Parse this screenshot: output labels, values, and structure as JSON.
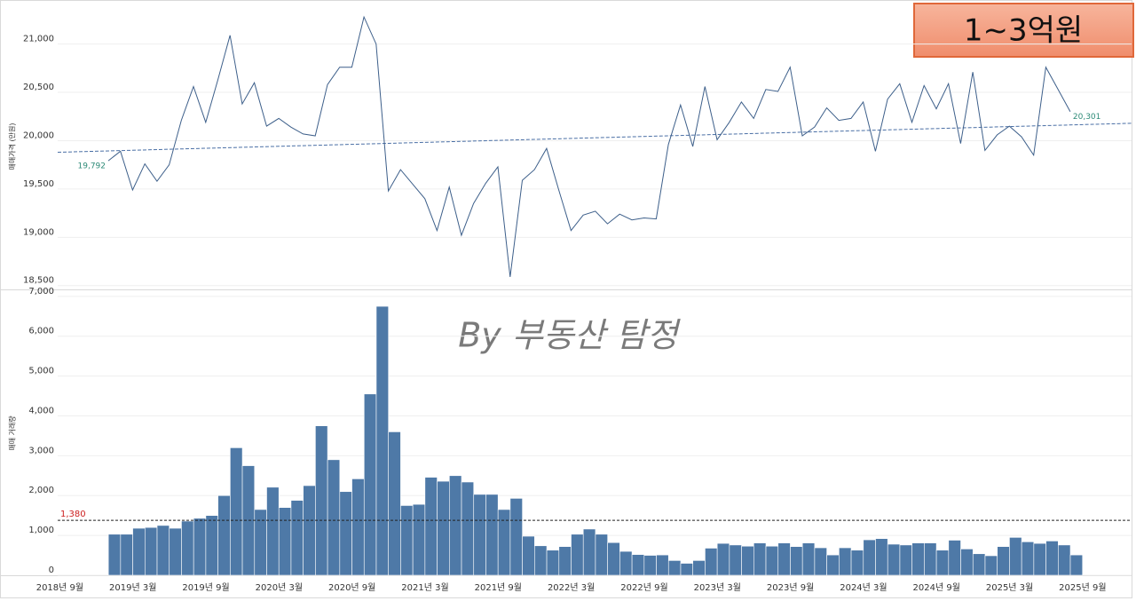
{
  "badge": "1~3억원",
  "watermark": "By 부동산 탐정",
  "chart_data": {
    "type": "combo",
    "categories": [
      "2018년 9월",
      null,
      null,
      null,
      null,
      null,
      "2019년 3월",
      null,
      null,
      null,
      null,
      null,
      "2019년 9월",
      null,
      null,
      null,
      null,
      null,
      "2020년 3월",
      null,
      null,
      null,
      null,
      null,
      "2020년 9월",
      null,
      null,
      null,
      null,
      null,
      "2021년 3월",
      null,
      null,
      null,
      null,
      null,
      "2021년 9월",
      null,
      null,
      null,
      null,
      null,
      "2022년 3월",
      null,
      null,
      null,
      null,
      null,
      "2022년 9월",
      null,
      null,
      null,
      null,
      null,
      "2023년 3월",
      null,
      null,
      null,
      null,
      null,
      "2023년 9월",
      null,
      null,
      null,
      null,
      null,
      "2024년 3월",
      null,
      null,
      null,
      null,
      null,
      "2024년 9월",
      null,
      null,
      null,
      null,
      null,
      "2025년 3월",
      null,
      null,
      null,
      null,
      null,
      "2025년 9월"
    ],
    "series": [
      {
        "type": "line",
        "color": "#3d5f8a",
        "ylabel": "매매가격 (만원)",
        "ylim": [
          18470,
          21410
        ],
        "yticks": [
          {
            "value": 18500,
            "label": "18,500"
          },
          {
            "value": 19000,
            "label": "19,000"
          },
          {
            "value": 19500,
            "label": "19,500"
          },
          {
            "value": 20000,
            "label": "20,000"
          },
          {
            "value": 20500,
            "label": "20,500"
          },
          {
            "value": 21000,
            "label": "21,000"
          }
        ],
        "grid": true,
        "values": [
          null,
          null,
          null,
          null,
          null,
          19792,
          19890,
          19490,
          19760,
          19580,
          19750,
          20210,
          20560,
          20190,
          20630,
          21090,
          20380,
          20600,
          20150,
          20230,
          20140,
          20070,
          20050,
          20580,
          20760,
          20760,
          21280,
          21000,
          19480,
          19700,
          19550,
          19400,
          19070,
          19520,
          19020,
          19350,
          19560,
          19730,
          18590,
          19590,
          19700,
          19920,
          19490,
          19070,
          19230,
          19270,
          19140,
          19240,
          19180,
          19200,
          19190,
          19960,
          20370,
          19940,
          20560,
          20010,
          20190,
          20400,
          20230,
          20530,
          20510,
          20760,
          20050,
          20140,
          20340,
          20210,
          20230,
          20400,
          19890,
          20430,
          20590,
          20190,
          20570,
          20330,
          20590,
          19970,
          20710,
          19900,
          20060,
          20150,
          20040,
          19850,
          20760,
          20530,
          20301
        ],
        "value_labels": [
          null,
          null,
          null,
          null,
          null,
          "19,792",
          null,
          null,
          null,
          null,
          null,
          null,
          null,
          null,
          null,
          null,
          null,
          null,
          null,
          null,
          null,
          null,
          null,
          null,
          null,
          null,
          null,
          null,
          null,
          null,
          null,
          null,
          null,
          null,
          null,
          null,
          null,
          null,
          null,
          null,
          null,
          null,
          null,
          null,
          null,
          null,
          null,
          null,
          null,
          null,
          null,
          null,
          null,
          null,
          null,
          null,
          null,
          null,
          null,
          null,
          null,
          null,
          null,
          null,
          null,
          null,
          null,
          null,
          null,
          null,
          null,
          null,
          null,
          null,
          null,
          null,
          null,
          null,
          null,
          null,
          null,
          null,
          null,
          null,
          "20,301"
        ],
        "label_color": "#2e8b78",
        "trend_line": [
          19880,
          20180
        ],
        "trend_color": "#4a6fa5"
      },
      {
        "type": "bar",
        "color": "#4e79a7",
        "ylabel": "매매 거래량",
        "ylim": [
          0,
          7130
        ],
        "yticks": [
          0,
          {
            "value": 1000,
            "label": "1,000"
          },
          {
            "value": 2000,
            "label": "2,000"
          },
          {
            "value": 3000,
            "label": "3,000"
          },
          {
            "value": 4000,
            "label": "4,000"
          },
          {
            "value": 5000,
            "label": "5,000"
          },
          {
            "value": 6000,
            "label": "6,000"
          },
          {
            "value": 7000,
            "label": "7,000"
          }
        ],
        "grid": true,
        "values": [
          null,
          null,
          null,
          null,
          null,
          1030,
          1030,
          1180,
          1200,
          1250,
          1180,
          1360,
          1430,
          1500,
          2000,
          3200,
          2750,
          1650,
          2210,
          1700,
          1880,
          2250,
          3750,
          2900,
          2100,
          2420,
          4550,
          6750,
          3600,
          1750,
          1780,
          2460,
          2360,
          2500,
          2340,
          2030,
          2030,
          1650,
          1930,
          980,
          740,
          630,
          720,
          1030,
          1160,
          1030,
          820,
          600,
          520,
          500,
          510,
          370,
          300,
          370,
          680,
          800,
          760,
          730,
          810,
          730,
          810,
          720,
          810,
          690,
          510,
          690,
          630,
          890,
          920,
          780,
          760,
          810,
          810,
          630,
          880,
          660,
          540,
          490,
          720,
          950,
          840,
          800,
          860,
          760,
          510
        ],
        "reference_line": {
          "value": 1380,
          "label": "1,380"
        },
        "reference_color": "#222",
        "reference_label_color": "#cc1f1f"
      }
    ]
  }
}
